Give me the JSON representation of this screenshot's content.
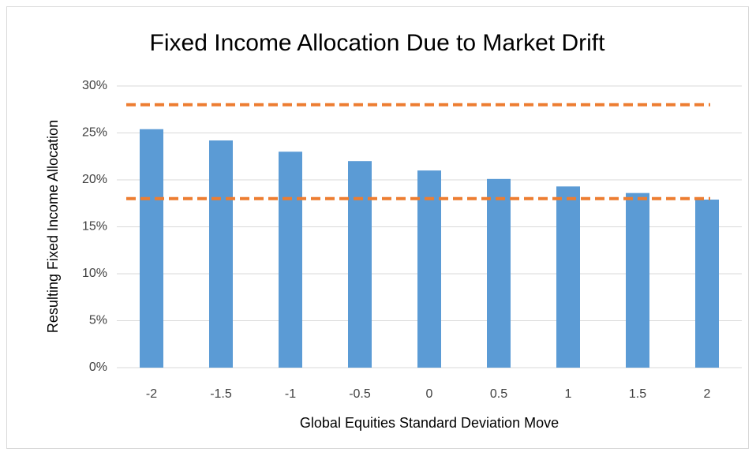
{
  "chart_data": {
    "type": "bar",
    "title": "Fixed Income Allocation Due to Market Drift",
    "x_label": "Global Equities Standard Deviation Move",
    "y_label": "Resulting Fixed Income Allocation",
    "categories": [
      "-2",
      "-1.5",
      "-1",
      "-0.5",
      "0",
      "0.5",
      "1",
      "1.5",
      "2"
    ],
    "values": [
      25.4,
      24.2,
      23.0,
      22.0,
      21.0,
      20.1,
      19.3,
      18.6,
      17.9
    ],
    "color": "#5b9bd5",
    "reference_lines": [
      {
        "value": 28,
        "color": "#ed7d31"
      },
      {
        "value": 18,
        "color": "#ed7d31"
      }
    ],
    "ylim": [
      0,
      30
    ],
    "yticks": [
      {
        "value": 0,
        "label": "0%"
      },
      {
        "value": 5,
        "label": "5%"
      },
      {
        "value": 10,
        "label": "10%"
      },
      {
        "value": 15,
        "label": "15%"
      },
      {
        "value": 20,
        "label": "20%"
      },
      {
        "value": 25,
        "label": "25%"
      },
      {
        "value": 30,
        "label": "30%"
      }
    ],
    "grid": true
  }
}
